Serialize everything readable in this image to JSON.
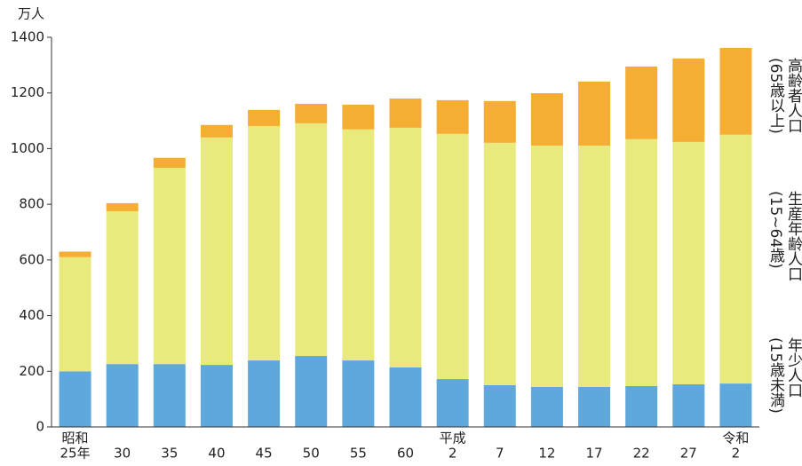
{
  "chart_data": {
    "type": "stacked_bar",
    "y_unit": "万人",
    "categories": [
      [
        "昭和",
        "25年"
      ],
      [
        "30"
      ],
      [
        "35"
      ],
      [
        "40"
      ],
      [
        "45"
      ],
      [
        "50"
      ],
      [
        "55"
      ],
      [
        "60"
      ],
      [
        "平成",
        "2"
      ],
      [
        "7"
      ],
      [
        "12"
      ],
      [
        "17"
      ],
      [
        "22"
      ],
      [
        "27"
      ],
      [
        "令和",
        "2"
      ]
    ],
    "series": [
      {
        "name": "年少人口",
        "note": "(15歳未満)",
        "color": "#5fa8dc",
        "values": [
          200,
          226,
          226,
          223,
          239,
          255,
          239,
          214,
          172,
          150,
          144,
          144,
          147,
          153,
          156
        ]
      },
      {
        "name": "生産年齢人口",
        "note": "(15~64歳)",
        "color": "#e8ea7e",
        "values": [
          410,
          549,
          705,
          817,
          842,
          836,
          830,
          861,
          881,
          871,
          867,
          867,
          887,
          871,
          894
        ]
      },
      {
        "name": "高齢者人口",
        "note": "(65歳以上)",
        "color": "#f5ad33",
        "values": [
          20,
          29,
          36,
          45,
          58,
          70,
          89,
          105,
          121,
          150,
          188,
          230,
          261,
          300,
          312
        ]
      }
    ],
    "ylim": [
      0,
      1400
    ],
    "yticks": [
      0,
      200,
      400,
      600,
      800,
      1000,
      1200,
      1400
    ],
    "grid": false
  }
}
